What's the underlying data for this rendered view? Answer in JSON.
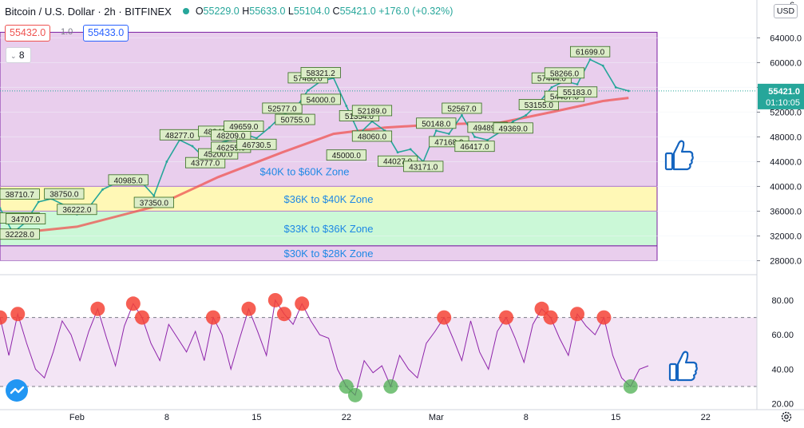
{
  "header": {
    "symbol": "Bitcoin / U.S. Dollar",
    "interval": "2h",
    "exchange": "BITFINEX",
    "status_color": "#26a69a",
    "ohlc": {
      "o": "55229.0",
      "h": "55633.0",
      "l": "55104.0",
      "c": "55421.0",
      "change": "+176.0 (+0.32%)"
    }
  },
  "trade": {
    "sell_price": "55432.0",
    "spread": "1.0",
    "buy_price": "55433.0",
    "sell_color": "#ef5350",
    "buy_color": "#2962ff"
  },
  "indicator_toggle": "8",
  "currency_label": "USD",
  "price_scale": {
    "ticks": [
      "64000.0",
      "60000.0",
      "56000.0",
      "52000.0",
      "48000.0",
      "44000.0",
      "40000.0",
      "36000.0",
      "32000.0",
      "28000.0"
    ],
    "top_partial": "6",
    "current_price": "55421.0",
    "countdown": "01:10:05",
    "current_color": "#26a69a"
  },
  "rsi_scale": {
    "ticks": [
      "80.00",
      "60.00",
      "40.00",
      "20.00"
    ]
  },
  "time_axis": [
    "Feb",
    "8",
    "15",
    "22",
    "Mar",
    "8",
    "15",
    "22"
  ],
  "icons": {
    "thumbs_up_main": "thumbs-up-icon",
    "thumbs_up_rsi": "thumbs-up-icon",
    "logo": "tradingview-logo-icon",
    "settings": "gear-icon"
  },
  "chart_data": {
    "type": "line",
    "title": "Bitcoin / U.S. Dollar · 2h · BITFINEX",
    "ylim": [
      26000,
      66500
    ],
    "xlim_days": [
      "2021-01-26",
      "2021-03-26"
    ],
    "zones": [
      {
        "label": "$40K to $60K Zone",
        "from": 40000,
        "to": 64900,
        "color": "#e1bee7"
      },
      {
        "label": "$36K to $40K Zone",
        "from": 36000,
        "to": 40000,
        "color": "#fff59d"
      },
      {
        "label": "$33K to $36K Zone",
        "from": 30400,
        "to": 36000,
        "color": "#b9f6ca"
      },
      {
        "label": "$30K to $28K Zone",
        "from": 28000,
        "to": 30400,
        "color": "#e1bee7"
      }
    ],
    "price_labels": [
      {
        "text": "38710.7",
        "date": "2021-01-26",
        "price": 38710
      },
      {
        "text": "34841.0",
        "date": "2021-01-27",
        "price": 34841
      },
      {
        "text": "34707.0",
        "date": "2021-01-28",
        "price": 34707
      },
      {
        "text": "32228.0",
        "date": "2021-01-27",
        "price": 32228
      },
      {
        "text": "38750.0",
        "date": "2021-01-31",
        "price": 38750
      },
      {
        "text": "36222.0",
        "date": "2021-02-01",
        "price": 36222
      },
      {
        "text": "40985.0",
        "date": "2021-02-05",
        "price": 40985
      },
      {
        "text": "37350.0",
        "date": "2021-02-07",
        "price": 37350
      },
      {
        "text": "48277.0",
        "date": "2021-02-09",
        "price": 48277
      },
      {
        "text": "43777.0",
        "date": "2021-02-11",
        "price": 43777
      },
      {
        "text": "48840.0",
        "date": "2021-02-12",
        "price": 48840
      },
      {
        "text": "45200.0",
        "date": "2021-02-12",
        "price": 45200
      },
      {
        "text": "48209.0",
        "date": "2021-02-13",
        "price": 48209
      },
      {
        "text": "46255.0",
        "date": "2021-02-13",
        "price": 46255
      },
      {
        "text": "49659.0",
        "date": "2021-02-14",
        "price": 49659
      },
      {
        "text": "46730.5",
        "date": "2021-02-15",
        "price": 46730
      },
      {
        "text": "52577.0",
        "date": "2021-02-17",
        "price": 52577
      },
      {
        "text": "50755.0",
        "date": "2021-02-18",
        "price": 50755
      },
      {
        "text": "57480.0",
        "date": "2021-02-19",
        "price": 57480
      },
      {
        "text": "58321.2",
        "date": "2021-02-20",
        "price": 58321
      },
      {
        "text": "54000.0",
        "date": "2021-02-20",
        "price": 54000
      },
      {
        "text": "51354.0",
        "date": "2021-02-23",
        "price": 51354
      },
      {
        "text": "45000.0",
        "date": "2021-02-22",
        "price": 45000
      },
      {
        "text": "52189.0",
        "date": "2021-02-24",
        "price": 52189
      },
      {
        "text": "48060.0",
        "date": "2021-02-24",
        "price": 48060
      },
      {
        "text": "44027.0",
        "date": "2021-02-26",
        "price": 44027
      },
      {
        "text": "43171.0",
        "date": "2021-02-28",
        "price": 43171
      },
      {
        "text": "50148.0",
        "date": "2021-03-01",
        "price": 50148
      },
      {
        "text": "52567.0",
        "date": "2021-03-03",
        "price": 52567
      },
      {
        "text": "47168.0",
        "date": "2021-03-02",
        "price": 47168
      },
      {
        "text": "49489.0",
        "date": "2021-03-05",
        "price": 49489
      },
      {
        "text": "46417.0",
        "date": "2021-03-04",
        "price": 46417
      },
      {
        "text": "49369.0",
        "date": "2021-03-07",
        "price": 49369
      },
      {
        "text": "53155.0",
        "date": "2021-03-09",
        "price": 53155
      },
      {
        "text": "57444.0",
        "date": "2021-03-10",
        "price": 57444
      },
      {
        "text": "58266.0",
        "date": "2021-03-11",
        "price": 58266
      },
      {
        "text": "54487.0",
        "date": "2021-03-11",
        "price": 54487
      },
      {
        "text": "55183.0",
        "date": "2021-03-12",
        "price": 55183
      },
      {
        "text": "61699.0",
        "date": "2021-03-13",
        "price": 61699
      }
    ],
    "series": [
      {
        "name": "Price",
        "color": "#26a69a",
        "x": [
          "2021-01-26",
          "2021-01-27",
          "2021-01-28",
          "2021-01-29",
          "2021-01-30",
          "2021-01-31",
          "2021-02-01",
          "2021-02-02",
          "2021-02-03",
          "2021-02-04",
          "2021-02-05",
          "2021-02-06",
          "2021-02-07",
          "2021-02-08",
          "2021-02-09",
          "2021-02-10",
          "2021-02-11",
          "2021-02-12",
          "2021-02-13",
          "2021-02-14",
          "2021-02-15",
          "2021-02-16",
          "2021-02-17",
          "2021-02-18",
          "2021-02-19",
          "2021-02-20",
          "2021-02-21",
          "2021-02-22",
          "2021-02-23",
          "2021-02-24",
          "2021-02-25",
          "2021-02-26",
          "2021-02-27",
          "2021-02-28",
          "2021-03-01",
          "2021-03-02",
          "2021-03-03",
          "2021-03-04",
          "2021-03-05",
          "2021-03-06",
          "2021-03-07",
          "2021-03-08",
          "2021-03-09",
          "2021-03-10",
          "2021-03-11",
          "2021-03-12",
          "2021-03-13",
          "2021-03-14",
          "2021-03-15",
          "2021-03-16"
        ],
        "values": [
          36500,
          32500,
          34200,
          37500,
          38000,
          37000,
          35500,
          36800,
          39500,
          40500,
          41000,
          40800,
          38500,
          44000,
          47500,
          46500,
          44500,
          47000,
          47500,
          48500,
          47800,
          49500,
          51500,
          52500,
          55500,
          57000,
          57500,
          53000,
          48500,
          50500,
          49000,
          45500,
          46000,
          44000,
          49000,
          48500,
          51500,
          48000,
          47500,
          48800,
          50500,
          51500,
          53500,
          56000,
          57000,
          56500,
          60500,
          59500,
          56000,
          55421
        ]
      },
      {
        "name": "Moving Average",
        "color": "#ef5350",
        "x": [
          "2021-01-26",
          "2021-02-01",
          "2021-02-07",
          "2021-02-12",
          "2021-02-17",
          "2021-02-21",
          "2021-02-25",
          "2021-03-01",
          "2021-03-06",
          "2021-03-10",
          "2021-03-14",
          "2021-03-16"
        ],
        "values": [
          32200,
          33500,
          36700,
          41500,
          45500,
          48500,
          49500,
          50000,
          50300,
          52000,
          53800,
          54300
        ]
      }
    ],
    "rsi": {
      "ylim": [
        18,
        92
      ],
      "levels": [
        70,
        30
      ],
      "values": [
        70,
        48,
        72,
        55,
        40,
        35,
        50,
        68,
        60,
        45,
        62,
        75,
        58,
        42,
        65,
        78,
        70,
        55,
        45,
        66,
        58,
        50,
        62,
        45,
        70,
        60,
        40,
        58,
        75,
        62,
        48,
        80,
        72,
        66,
        78,
        68,
        60,
        58,
        40,
        30,
        25,
        45,
        38,
        42,
        30,
        48,
        40,
        35,
        55,
        62,
        70,
        58,
        45,
        68,
        50,
        40,
        62,
        70,
        58,
        44,
        66,
        75,
        70,
        58,
        48,
        72,
        65,
        60,
        70,
        48,
        35,
        30,
        40,
        42
      ]
    }
  }
}
